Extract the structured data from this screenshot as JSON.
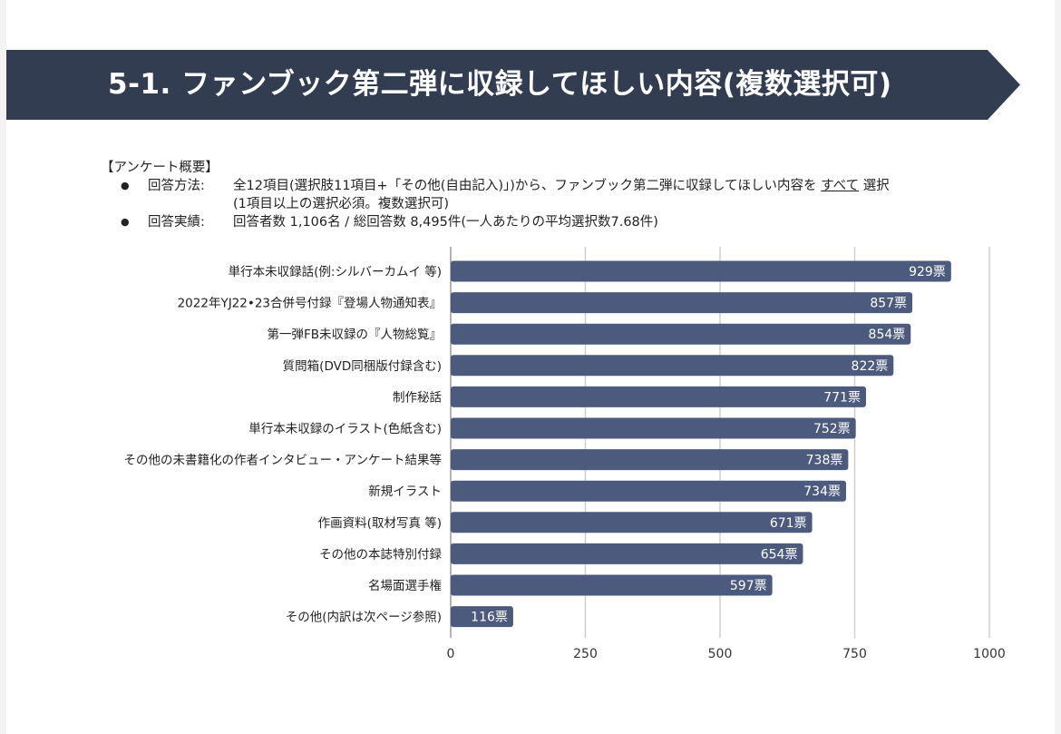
{
  "title": "5-1. ファンブック第二弾に収録してほしい内容(複数選択可)",
  "overview": {
    "heading": "【アンケート概要】",
    "method_label": "回答方法:",
    "method_text_pre": "全12項目(選択肢11項目+「その他(自由記入)」)から、ファンブック第二弾に収録してほしい内容を",
    "method_text_emph": "すべて",
    "method_text_post": "選択",
    "method_text_line2": "(1項目以上の選択必須。複数選択可)",
    "result_label": "回答実績:",
    "result_text": "回答者数 1,106名 / 総回答数 8,495件(一人あたりの平均選択数7.68件)"
  },
  "colors": {
    "bar": "#4c5b7d",
    "banner": "#323d52",
    "grid": "#cfcfcf"
  },
  "chart_data": {
    "type": "bar",
    "orientation": "horizontal",
    "categories": [
      "単行本未収録話(例:シルバーカムイ 等)",
      "2022年YJ22•23合併号付録『登場人物通知表』",
      "第一弾FB未収録の『人物総覧』",
      "質問箱(DVD同梱版付録含む)",
      "制作秘話",
      "単行本未収録のイラスト(色紙含む)",
      "その他の未書籍化の作者インタビュー・アンケート結果等",
      "新規イラスト",
      "作画資料(取材写真 等)",
      "その他の本誌特別付録",
      "名場面選手権",
      "その他(内訳は次ページ参照)"
    ],
    "values": [
      929,
      857,
      854,
      822,
      771,
      752,
      738,
      734,
      671,
      654,
      597,
      116
    ],
    "value_labels": [
      "929票",
      "857票",
      "854票",
      "822票",
      "771票",
      "752票",
      "738票",
      "734票",
      "671票",
      "654票",
      "597票",
      "116票"
    ],
    "xlim": [
      0,
      1000
    ],
    "xticks": [
      0,
      250,
      500,
      750,
      1000
    ],
    "xtick_labels": [
      "0",
      "250",
      "500",
      "750",
      "1000"
    ],
    "grid": true
  }
}
